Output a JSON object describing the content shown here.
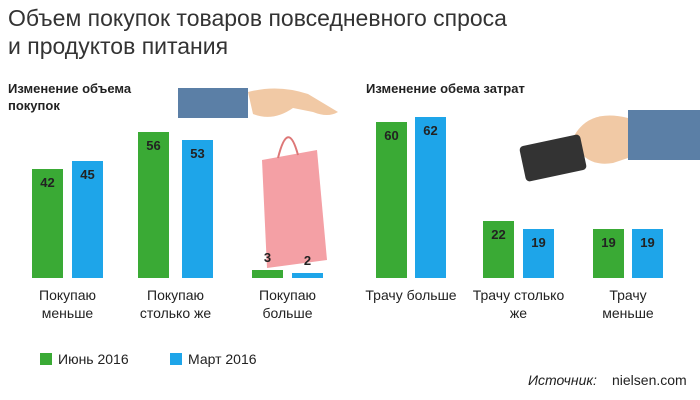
{
  "title": [
    "Объем покупок товаров повседневного спроса",
    "и продуктов питания"
  ],
  "chart_data": [
    {
      "type": "bar",
      "title": "Изменение объема покупок",
      "categories": [
        "Покупаю меньше",
        "Покупаю столько же",
        "Покупаю больше"
      ],
      "series": [
        {
          "name": "Июнь 2016",
          "color": "#3aaa35",
          "values": [
            42,
            56,
            3
          ]
        },
        {
          "name": "Март 2016",
          "color": "#1ea5e9",
          "values": [
            45,
            53,
            2
          ]
        }
      ]
    },
    {
      "type": "bar",
      "title": "Изменение обема затрат",
      "categories": [
        "Трачу больше",
        "Трачу столько же",
        "Трачу меньше"
      ],
      "series": [
        {
          "name": "Июнь 2016",
          "color": "#3aaa35",
          "values": [
            60,
            22,
            19
          ]
        },
        {
          "name": "Март 2016",
          "color": "#1ea5e9",
          "values": [
            62,
            19,
            19
          ]
        }
      ]
    }
  ],
  "source_label": "Источник:",
  "source": "nielsen.com"
}
